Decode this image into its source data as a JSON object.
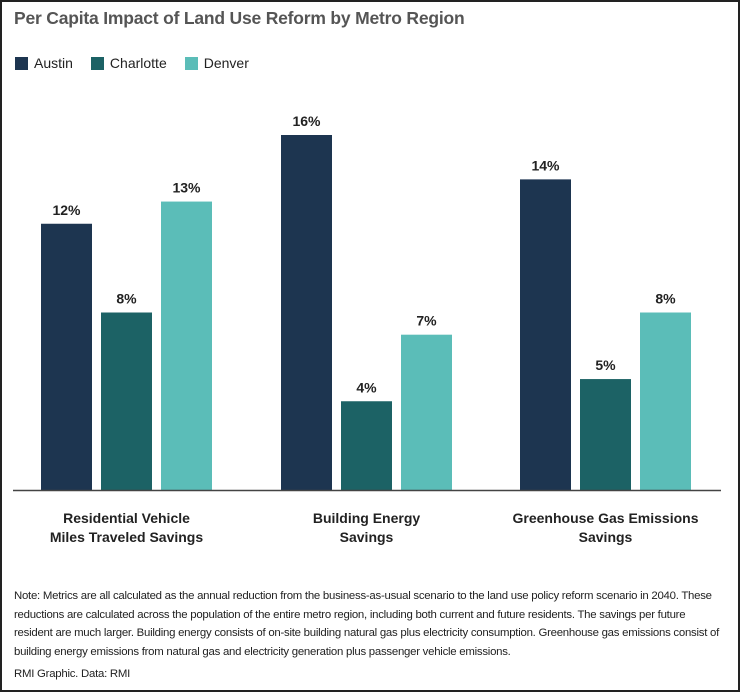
{
  "chart_data": {
    "type": "bar",
    "title": "Per Capita Impact of Land Use Reform by Metro Region",
    "categories": [
      "Residential Vehicle\nMiles Traveled Savings",
      "Building Energy\nSavings",
      "Greenhouse Gas Emissions\nSavings"
    ],
    "series": [
      {
        "name": "Austin",
        "color": "#1d3550",
        "values": [
          12,
          16,
          14
        ]
      },
      {
        "name": "Charlotte",
        "color": "#1c6265",
        "values": [
          8,
          4,
          5
        ]
      },
      {
        "name": "Denver",
        "color": "#5bbdb8",
        "values": [
          13,
          7,
          8
        ]
      }
    ],
    "value_suffix": "%",
    "ylim": [
      0,
      16
    ],
    "grid": false,
    "legend_position": "top-left"
  },
  "note": "Note: Metrics are all calculated as the annual reduction from the business-as-usual scenario to the land use policy reform scenario in 2040. These reductions are calculated across the population of the entire metro region, including both current and future residents. The savings per future resident are much larger. Building energy consists of on-site building natural gas plus electricity consumption. Greenhouse gas emissions consist of building energy emissions from natural gas and electricity generation plus passenger vehicle emissions.",
  "credit": "RMI Graphic. Data: RMI"
}
